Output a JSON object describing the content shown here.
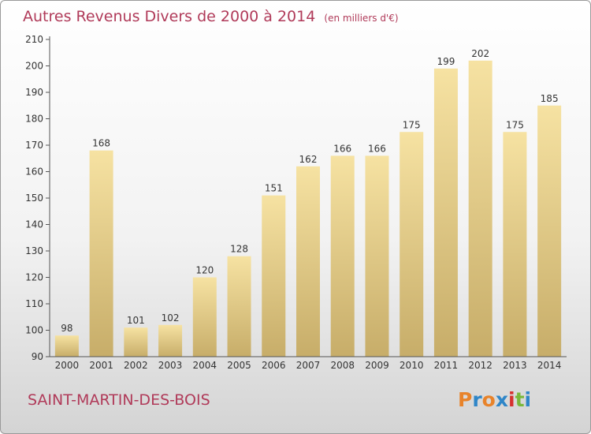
{
  "header": {
    "title": "Autres Revenus Divers de 2000 à 2014",
    "subtitle": "(en milliers d'€)"
  },
  "footer": {
    "commune": "SAINT-MARTIN-DES-BOIS",
    "brand_letters": [
      "P",
      "r",
      "o",
      "x",
      "i",
      "t",
      "i"
    ]
  },
  "colors": {
    "title": "#b03a59",
    "bar_light": "#f6e2a2",
    "bar_dark": "#c7ad69",
    "axis": "#555555",
    "grid": "#cfcfcf",
    "brand": [
      "#e8832a",
      "#2f86c8",
      "#e8832a",
      "#2f86c8",
      "#d6312e",
      "#79b83a",
      "#2f86c8"
    ]
  },
  "chart_data": {
    "type": "bar",
    "title": "Autres Revenus Divers de 2000 à 2014",
    "xlabel": "",
    "ylabel": "",
    "categories": [
      "2000",
      "2001",
      "2002",
      "2003",
      "2004",
      "2005",
      "2006",
      "2007",
      "2008",
      "2009",
      "2010",
      "2011",
      "2012",
      "2013",
      "2014"
    ],
    "values": [
      98,
      168,
      101,
      102,
      120,
      128,
      151,
      162,
      166,
      166,
      175,
      199,
      202,
      175,
      185
    ],
    "ylim": [
      90,
      210
    ],
    "yticks": [
      90,
      100,
      110,
      120,
      130,
      140,
      150,
      160,
      170,
      180,
      190,
      200,
      210
    ],
    "grid": false,
    "data_labels": true
  }
}
